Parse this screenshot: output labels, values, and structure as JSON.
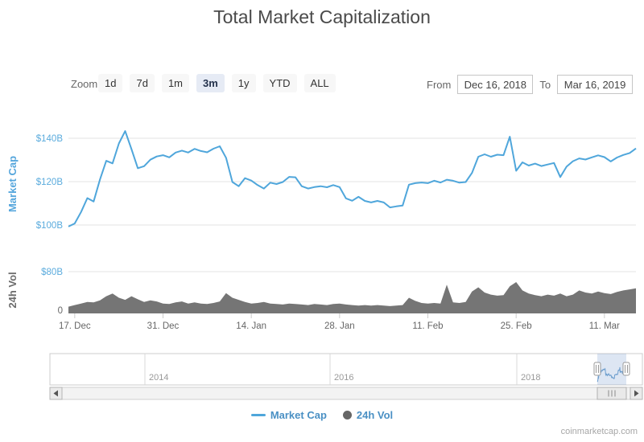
{
  "title": "Total Market Capitalization",
  "toolbar": {
    "zoom_label": "Zoom",
    "buttons": [
      "1d",
      "7d",
      "1m",
      "3m",
      "1y",
      "YTD",
      "ALL"
    ],
    "selected": "3m",
    "from_label": "From",
    "from_value": "Dec 16, 2018",
    "to_label": "To",
    "to_value": "Mar 16, 2019"
  },
  "legend": [
    {
      "label": "Market Cap",
      "marker": "line",
      "color": "#4fa6db"
    },
    {
      "label": "24h Vol",
      "marker": "circle",
      "color": "#666666"
    }
  ],
  "credit": "coinmarketcap.com",
  "chart_data": {
    "type": "line",
    "title": "Total Market Capitalization",
    "x_range": [
      "Dec 16, 2018",
      "Mar 16, 2019"
    ],
    "x_ticks": [
      {
        "label": "17. Dec",
        "day": 1
      },
      {
        "label": "31. Dec",
        "day": 15
      },
      {
        "label": "14. Jan",
        "day": 29
      },
      {
        "label": "28. Jan",
        "day": 43
      },
      {
        "label": "11. Feb",
        "day": 57
      },
      {
        "label": "25. Feb",
        "day": 71
      },
      {
        "label": "11. Mar",
        "day": 85
      }
    ],
    "market_cap": {
      "ylabel": "Market Cap",
      "unit": "$B",
      "ylim": [
        96,
        146
      ],
      "color": "#4fa6db",
      "ticks": [
        {
          "label": "$140B",
          "value": 140
        },
        {
          "label": "$120B",
          "value": 120
        },
        {
          "label": "$100B",
          "value": 100
        }
      ],
      "values": [
        99.3,
        100.7,
        106.0,
        112.4,
        110.8,
        121.0,
        129.6,
        128.4,
        137.6,
        143.3,
        135.0,
        126.2,
        127.1,
        130.1,
        131.6,
        132.2,
        131.2,
        133.4,
        134.3,
        133.4,
        135.1,
        134.1,
        133.5,
        135.2,
        136.3,
        131.0,
        119.8,
        117.9,
        121.6,
        120.5,
        118.4,
        116.8,
        119.5,
        118.9,
        119.8,
        122.2,
        122.0,
        117.9,
        116.8,
        117.5,
        117.9,
        117.4,
        118.4,
        117.5,
        112.3,
        111.2,
        113.0,
        111.1,
        110.4,
        111.1,
        110.4,
        108.1,
        108.6,
        109.0,
        118.6,
        119.3,
        119.6,
        119.3,
        120.4,
        119.6,
        120.9,
        120.4,
        119.5,
        119.8,
        124.0,
        131.5,
        132.6,
        131.5,
        132.4,
        132.2,
        140.7,
        125.0,
        128.9,
        127.4,
        128.3,
        127.2,
        127.9,
        128.6,
        122.1,
        126.9,
        129.4,
        130.7,
        130.2,
        131.2,
        132.1,
        131.3,
        129.3,
        131.1,
        132.3,
        133.2,
        135.3
      ]
    },
    "volume": {
      "ylabel": "24h Vol",
      "unit": "$B",
      "ylim": [
        0,
        80
      ],
      "color": "#757575",
      "ticks": [
        {
          "label": "$80B",
          "value": 80
        },
        {
          "label": "0",
          "value": 0
        }
      ],
      "values": [
        13,
        16,
        19,
        22,
        21,
        25,
        33,
        38,
        30,
        26,
        33,
        27,
        22,
        25,
        23,
        19,
        18,
        21,
        23,
        19,
        21,
        19,
        18,
        20,
        23,
        39,
        30,
        26,
        22,
        19,
        20,
        22,
        19,
        18,
        17,
        19,
        18,
        17,
        16,
        18,
        17,
        16,
        18,
        19,
        17,
        16,
        15,
        16,
        15,
        16,
        15,
        14,
        15,
        16,
        30,
        24,
        20,
        19,
        20,
        19,
        55,
        21,
        20,
        22,
        42,
        50,
        40,
        36,
        34,
        35,
        52,
        60,
        44,
        38,
        35,
        33,
        36,
        34,
        38,
        33,
        36,
        44,
        40,
        38,
        42,
        39,
        37,
        41,
        44,
        46,
        48
      ]
    },
    "navigator": {
      "year_labels": [
        "2014",
        "2016",
        "2018"
      ],
      "selected_range": [
        "Dec 16, 2018",
        "Mar 16, 2019"
      ]
    }
  }
}
